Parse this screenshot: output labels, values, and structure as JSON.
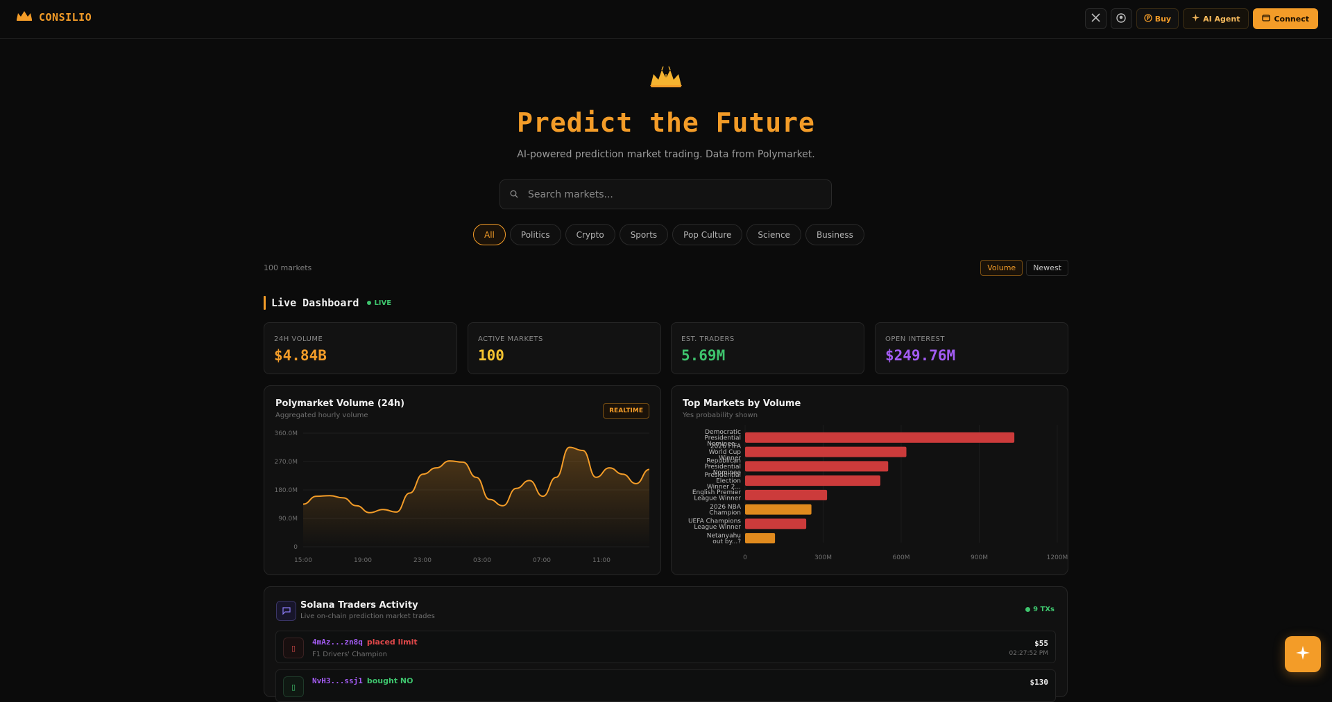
{
  "app": {
    "name": "CONSILIO"
  },
  "nav": {
    "buy_label": "Buy",
    "agent_label": "AI Agent",
    "connect_label": "Connect"
  },
  "hero": {
    "title": "Predict the Future",
    "subtitle": "AI-powered prediction market trading. Data from Polymarket."
  },
  "search": {
    "placeholder": "Search markets...",
    "value": ""
  },
  "categories": [
    "All",
    "Politics",
    "Crypto",
    "Sports",
    "Pop Culture",
    "Science",
    "Business"
  ],
  "active_category": "All",
  "market_count": "100 markets",
  "sort": {
    "options": [
      "Volume",
      "Newest"
    ],
    "active": "Volume"
  },
  "dashboard": {
    "title": "Live Dashboard",
    "live_label": "LIVE",
    "stats": [
      {
        "label": "24H VOLUME",
        "value": "$4.84B",
        "color": "#f39c28"
      },
      {
        "label": "ACTIVE MARKETS",
        "value": "100",
        "color": "#f5c431"
      },
      {
        "label": "EST. TRADERS",
        "value": "5.69M",
        "color": "#3ec46d"
      },
      {
        "label": "OPEN INTEREST",
        "value": "$249.76M",
        "color": "#a35cf3"
      }
    ]
  },
  "volume_panel": {
    "title": "Polymarket Volume (24h)",
    "subtitle": "Aggregated hourly volume",
    "badge": "REALTIME"
  },
  "markets_panel": {
    "title": "Top Markets by Volume",
    "subtitle": "Yes probability shown"
  },
  "chart_data": [
    {
      "type": "area",
      "title": "Polymarket Volume (24h)",
      "x_ticks": [
        "15:00",
        "19:00",
        "23:00",
        "03:00",
        "07:00",
        "11:00"
      ],
      "y_ticks": [
        "0",
        "90.0M",
        "180.0M",
        "270.0M",
        "360.0M"
      ],
      "ylim": [
        0,
        360
      ],
      "unit": "M",
      "series": [
        {
          "values": [
            135,
            160,
            162,
            155,
            130,
            108,
            118,
            110,
            170,
            230,
            250,
            272,
            268,
            220,
            150,
            130,
            185,
            210,
            160,
            220,
            315,
            305,
            220,
            250,
            230,
            200,
            245
          ]
        }
      ],
      "color": "#f39c28"
    },
    {
      "type": "bar",
      "orientation": "horizontal",
      "title": "Top Markets by Volume",
      "categories": [
        [
          "Democratic",
          "Presidential",
          "Nominee..."
        ],
        [
          "2026 FIFA",
          "World Cup",
          "Winner"
        ],
        [
          "Republican",
          "Presidential",
          "Nominee"
        ],
        [
          "Presidential",
          "Election",
          "Winner 2..."
        ],
        [
          "English Premier",
          "League Winner"
        ],
        [
          "2026 NBA",
          "Champion"
        ],
        [
          "UEFA Champions",
          "League Winner"
        ],
        [
          "Netanyahu",
          "out by...?"
        ]
      ],
      "values": [
        1035,
        620,
        550,
        520,
        315,
        255,
        235,
        115
      ],
      "colors": [
        "#cc3b3b",
        "#cc3b3b",
        "#cc3b3b",
        "#cc3b3b",
        "#cc3b3b",
        "#e08a1e",
        "#cc3b3b",
        "#e08a1e"
      ],
      "x_ticks": [
        "0",
        "300M",
        "600M",
        "900M",
        "1200M"
      ],
      "xlim": [
        0,
        1200
      ]
    }
  ],
  "activity": {
    "title": "Solana Traders Activity",
    "subtitle": "Live on-chain prediction market trades",
    "count": "9 TXs",
    "trades": [
      {
        "addr": "4mAz...zn8q",
        "action": "placed limit",
        "action_color": "#e0484a",
        "market": "F1 Drivers' Champion",
        "amount": "$55",
        "time": "02:27:52 PM"
      },
      {
        "addr": "NvH3...ssj1",
        "action": "bought NO",
        "action_color": "#3ec46d",
        "market": "",
        "amount": "$130",
        "time": ""
      }
    ]
  }
}
